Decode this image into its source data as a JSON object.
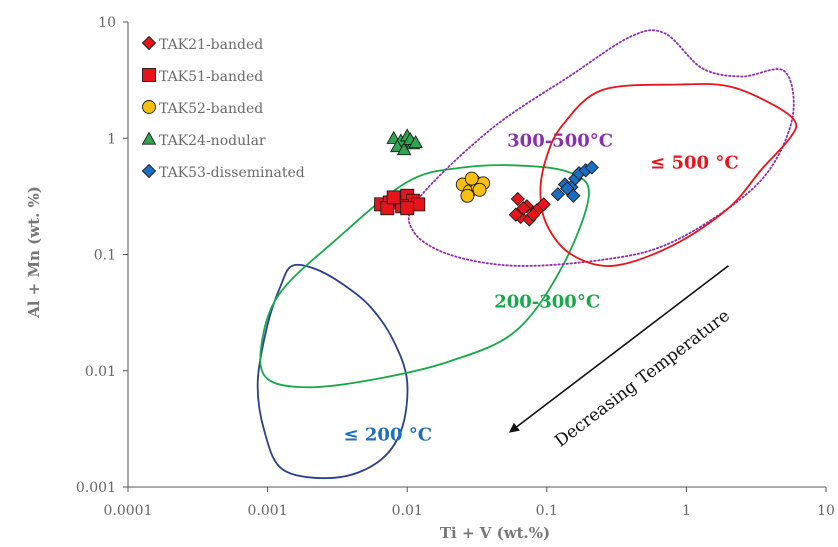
{
  "chart_data": {
    "type": "scatter",
    "xscale": "log",
    "yscale": "log",
    "xlim": [
      0.0001,
      10
    ],
    "ylim": [
      0.001,
      10
    ],
    "xticks": [
      "0.0001",
      "0.001",
      "0.01",
      "0.1",
      "1",
      "10"
    ],
    "yticks": [
      "10",
      "1",
      "0.1",
      "0.01",
      "0.001"
    ],
    "xlabel": "Ti + V (wt.%)",
    "ylabel": "Al + Mn (wt. %)",
    "grid": false,
    "legend_placement": "top-left",
    "series": [
      {
        "name": "TAK21-banded",
        "marker": "diamond",
        "color": "#e8141b",
        "points": [
          [
            0.062,
            0.3
          ],
          [
            0.072,
            0.26
          ],
          [
            0.085,
            0.24
          ],
          [
            0.065,
            0.21
          ],
          [
            0.075,
            0.2
          ],
          [
            0.068,
            0.25
          ],
          [
            0.095,
            0.27
          ],
          [
            0.06,
            0.22
          ],
          [
            0.08,
            0.22
          ]
        ]
      },
      {
        "name": "TAK51-banded",
        "marker": "square",
        "color": "#e8141b",
        "points": [
          [
            0.0065,
            0.27
          ],
          [
            0.0075,
            0.28
          ],
          [
            0.0085,
            0.3
          ],
          [
            0.01,
            0.32
          ],
          [
            0.011,
            0.29
          ],
          [
            0.0072,
            0.25
          ],
          [
            0.0092,
            0.26
          ],
          [
            0.012,
            0.27
          ],
          [
            0.008,
            0.31
          ],
          [
            0.01,
            0.25
          ]
        ]
      },
      {
        "name": "TAK52-banded",
        "marker": "circle",
        "color": "#f7bf0f",
        "points": [
          [
            0.025,
            0.4
          ],
          [
            0.028,
            0.35
          ],
          [
            0.03,
            0.43
          ],
          [
            0.032,
            0.38
          ],
          [
            0.027,
            0.32
          ],
          [
            0.035,
            0.41
          ],
          [
            0.029,
            0.45
          ],
          [
            0.033,
            0.36
          ]
        ]
      },
      {
        "name": "TAK24-nodular",
        "marker": "triangle",
        "color": "#2ea64f",
        "points": [
          [
            0.008,
            1.0
          ],
          [
            0.009,
            0.95
          ],
          [
            0.01,
            1.05
          ],
          [
            0.011,
            0.9
          ],
          [
            0.0085,
            0.85
          ],
          [
            0.0095,
            0.8
          ],
          [
            0.0105,
            0.98
          ],
          [
            0.0115,
            0.92
          ]
        ]
      },
      {
        "name": "TAK53-disseminated",
        "marker": "diamond",
        "color": "#1b6fc2",
        "points": [
          [
            0.12,
            0.33
          ],
          [
            0.135,
            0.4
          ],
          [
            0.15,
            0.38
          ],
          [
            0.16,
            0.45
          ],
          [
            0.17,
            0.5
          ],
          [
            0.19,
            0.53
          ],
          [
            0.21,
            0.56
          ],
          [
            0.155,
            0.32
          ],
          [
            0.14,
            0.37
          ]
        ]
      }
    ],
    "regions": [
      {
        "label": "≤ 200 °C",
        "color": "#2b3f8f",
        "label_color": "#1b6fc2",
        "style": "solid",
        "points": [
          [
            0.0015,
            0.08
          ],
          [
            0.0022,
            0.075
          ],
          [
            0.0035,
            0.055
          ],
          [
            0.0055,
            0.035
          ],
          [
            0.008,
            0.018
          ],
          [
            0.01,
            0.008
          ],
          [
            0.009,
            0.003
          ],
          [
            0.006,
            0.0016
          ],
          [
            0.003,
            0.0012
          ],
          [
            0.0013,
            0.0014
          ],
          [
            0.00095,
            0.003
          ],
          [
            0.00085,
            0.008
          ],
          [
            0.001,
            0.025
          ],
          [
            0.00125,
            0.055
          ]
        ],
        "label_at": [
          0.0035,
          0.0025
        ]
      },
      {
        "label": "200-300°C",
        "color": "#17a84a",
        "label_color": "#17a84a",
        "style": "solid",
        "points": [
          [
            0.01,
            0.42
          ],
          [
            0.025,
            0.56
          ],
          [
            0.07,
            0.58
          ],
          [
            0.15,
            0.5
          ],
          [
            0.2,
            0.32
          ],
          [
            0.13,
            0.08
          ],
          [
            0.06,
            0.022
          ],
          [
            0.02,
            0.012
          ],
          [
            0.006,
            0.0085
          ],
          [
            0.002,
            0.0072
          ],
          [
            0.001,
            0.0085
          ],
          [
            0.0009,
            0.016
          ],
          [
            0.0012,
            0.045
          ],
          [
            0.003,
            0.13
          ]
        ],
        "label_at": [
          0.042,
          0.035
        ]
      },
      {
        "label": "300-500°C",
        "color": "#8a2fb0",
        "label_color": "#8a2fb0",
        "style": "dotted",
        "points": [
          [
            0.012,
            0.3
          ],
          [
            0.04,
            1.2
          ],
          [
            0.15,
            3.5
          ],
          [
            0.4,
            7.5
          ],
          [
            0.7,
            8.0
          ],
          [
            1.3,
            4.0
          ],
          [
            2.5,
            3.4
          ],
          [
            5.0,
            3.8
          ],
          [
            5.8,
            1.6
          ],
          [
            4.0,
            0.55
          ],
          [
            2.0,
            0.25
          ],
          [
            0.7,
            0.12
          ],
          [
            0.25,
            0.09
          ],
          [
            0.06,
            0.08
          ],
          [
            0.02,
            0.1
          ],
          [
            0.011,
            0.16
          ]
        ],
        "label_at": [
          0.052,
          0.85
        ]
      },
      {
        "label": "≤ 500 °C",
        "color": "#e8141b",
        "label_color": "#e8141b",
        "style": "solid",
        "points": [
          [
            0.25,
            2.6
          ],
          [
            0.9,
            2.9
          ],
          [
            2.0,
            2.8
          ],
          [
            4.0,
            2.0
          ],
          [
            6.0,
            1.4
          ],
          [
            5.5,
            1.0
          ],
          [
            3.5,
            0.55
          ],
          [
            2.0,
            0.25
          ],
          [
            0.8,
            0.12
          ],
          [
            0.3,
            0.08
          ],
          [
            0.15,
            0.1
          ],
          [
            0.1,
            0.18
          ],
          [
            0.09,
            0.35
          ],
          [
            0.1,
            0.7
          ],
          [
            0.13,
            1.3
          ]
        ],
        "label_at": [
          0.55,
          0.55
        ]
      }
    ],
    "annotations": [
      {
        "text": "Decreasing Temperature",
        "arrow_from": [
          2.0,
          0.08
        ],
        "arrow_to": [
          0.055,
          0.003
        ]
      }
    ]
  },
  "colors": {
    "axis": "#555555",
    "label_gray": "#777777"
  }
}
